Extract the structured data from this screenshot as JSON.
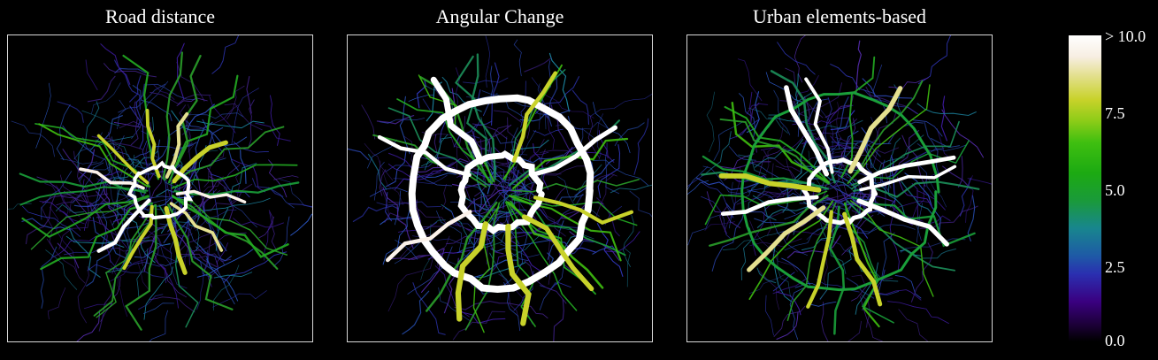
{
  "panels": [
    {
      "title": "Road distance",
      "variant": "road"
    },
    {
      "title": "Angular Change",
      "variant": "angular"
    },
    {
      "title": "Urban elements-based",
      "variant": "urban"
    }
  ],
  "colorbar": {
    "ticks": [
      "> 10.0",
      "7.5",
      "5.0",
      "2.5",
      "0.0"
    ],
    "range": [
      0.0,
      10.0
    ],
    "colors": [
      "#000000",
      "#3a0080",
      "#1e5aa6",
      "#1aa03a",
      "#3fbf10",
      "#c8d22a",
      "#ffffff"
    ]
  }
}
